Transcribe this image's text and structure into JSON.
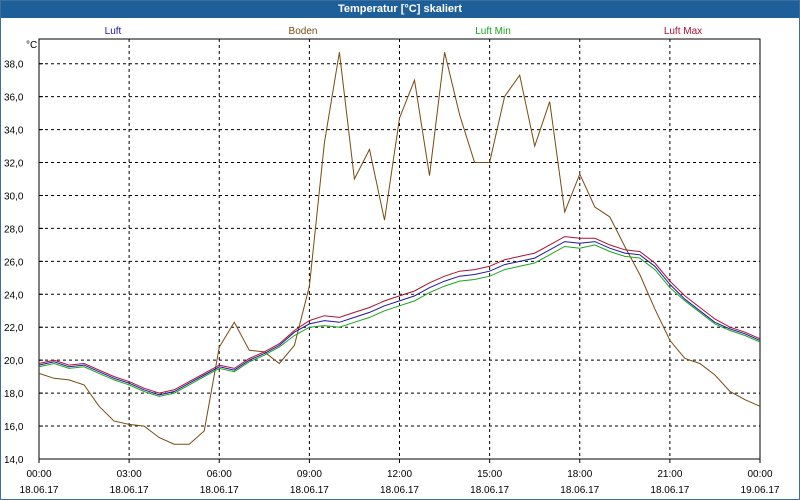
{
  "window": {
    "title": "Temperatur [°C] skaliert"
  },
  "colors": {
    "luft": "#1a1aa6",
    "boden": "#7a4a10",
    "luft_min": "#1aa61a",
    "luft_max": "#b01030",
    "grid": "#000000",
    "titlebar": "#1f5f99"
  },
  "chart_data": {
    "type": "line",
    "title": "Temperatur [°C] skaliert",
    "ylabel": "°C",
    "xlabel": "",
    "ylim": [
      14,
      39.5
    ],
    "xlim": [
      "2017-06-18 00:00",
      "2017-06-19 00:00"
    ],
    "grid": true,
    "legend_position": "top",
    "y_ticks": [
      "14,0",
      "16,0",
      "18,0",
      "20,0",
      "22,0",
      "24,0",
      "26,0",
      "28,0",
      "30,0",
      "32,0",
      "34,0",
      "36,0",
      "38,0"
    ],
    "x_ticks": [
      {
        "time": "00:00",
        "date": "18.06.17"
      },
      {
        "time": "03:00",
        "date": "18.06.17"
      },
      {
        "time": "06:00",
        "date": "18.06.17"
      },
      {
        "time": "09:00",
        "date": "18.06.17"
      },
      {
        "time": "12:00",
        "date": "18.06.17"
      },
      {
        "time": "15:00",
        "date": "18.06.17"
      },
      {
        "time": "18:00",
        "date": "18.06.17"
      },
      {
        "time": "21:00",
        "date": "18.06.17"
      },
      {
        "time": "00:00",
        "date": "19.06.17"
      }
    ],
    "x_hours": [
      0,
      0.5,
      1,
      1.5,
      2,
      2.5,
      3,
      3.5,
      4,
      4.5,
      5,
      5.5,
      6,
      6.5,
      7,
      7.5,
      8,
      8.5,
      9,
      9.5,
      10,
      10.5,
      11,
      11.5,
      12,
      12.5,
      13,
      13.5,
      14,
      14.5,
      15,
      15.5,
      16,
      16.5,
      17,
      17.5,
      18,
      18.5,
      19,
      19.5,
      20,
      20.5,
      21,
      21.5,
      22,
      22.5,
      23,
      23.5,
      24
    ],
    "series": [
      {
        "name": "Luft",
        "color_key": "luft",
        "values": [
          19.7,
          19.9,
          19.6,
          19.7,
          19.3,
          18.9,
          18.6,
          18.2,
          17.9,
          18.1,
          18.6,
          19.1,
          19.6,
          19.4,
          20.0,
          20.4,
          20.9,
          21.7,
          22.2,
          22.4,
          22.3,
          22.6,
          22.9,
          23.3,
          23.6,
          23.9,
          24.4,
          24.8,
          25.1,
          25.2,
          25.4,
          25.8,
          26.0,
          26.2,
          26.7,
          27.2,
          27.1,
          27.2,
          26.8,
          26.5,
          26.4,
          25.7,
          24.6,
          23.7,
          23.0,
          22.3,
          21.9,
          21.6,
          21.2
        ]
      },
      {
        "name": "Boden",
        "color_key": "boden",
        "values": [
          19.2,
          18.9,
          18.8,
          18.5,
          17.2,
          16.3,
          16.1,
          16.0,
          15.3,
          14.9,
          14.9,
          15.7,
          20.8,
          22.3,
          20.6,
          20.5,
          19.8,
          20.9,
          24.5,
          33.2,
          38.7,
          31.0,
          32.8,
          28.5,
          34.7,
          37.0,
          31.2,
          38.7,
          34.9,
          32.0,
          32.0,
          36.0,
          37.3,
          33.0,
          35.7,
          29.0,
          31.3,
          29.3,
          28.7,
          26.9,
          25.2,
          23.1,
          21.2,
          20.1,
          19.8,
          19.1,
          18.1,
          17.6,
          17.2
        ]
      },
      {
        "name": "Luft Min",
        "color_key": "luft_min",
        "values": [
          19.6,
          19.8,
          19.5,
          19.6,
          19.2,
          18.8,
          18.5,
          18.1,
          17.8,
          18.0,
          18.5,
          19.0,
          19.5,
          19.3,
          19.9,
          20.3,
          20.8,
          21.5,
          22.0,
          22.1,
          22.0,
          22.3,
          22.6,
          23.0,
          23.3,
          23.6,
          24.1,
          24.5,
          24.8,
          24.9,
          25.1,
          25.5,
          25.7,
          25.9,
          26.4,
          26.9,
          26.8,
          27.0,
          26.6,
          26.3,
          26.2,
          25.5,
          24.4,
          23.6,
          22.9,
          22.2,
          21.8,
          21.5,
          21.1
        ]
      },
      {
        "name": "Luft Max",
        "color_key": "luft_max",
        "values": [
          19.8,
          20.0,
          19.7,
          19.8,
          19.4,
          19.0,
          18.7,
          18.3,
          18.0,
          18.2,
          18.7,
          19.2,
          19.7,
          19.5,
          20.1,
          20.5,
          21.0,
          21.8,
          22.4,
          22.7,
          22.6,
          22.9,
          23.2,
          23.6,
          23.9,
          24.2,
          24.7,
          25.1,
          25.4,
          25.5,
          25.7,
          26.1,
          26.3,
          26.5,
          27.0,
          27.5,
          27.4,
          27.4,
          27.0,
          26.7,
          26.6,
          25.9,
          24.8,
          23.9,
          23.2,
          22.5,
          22.0,
          21.7,
          21.3
        ]
      }
    ]
  }
}
